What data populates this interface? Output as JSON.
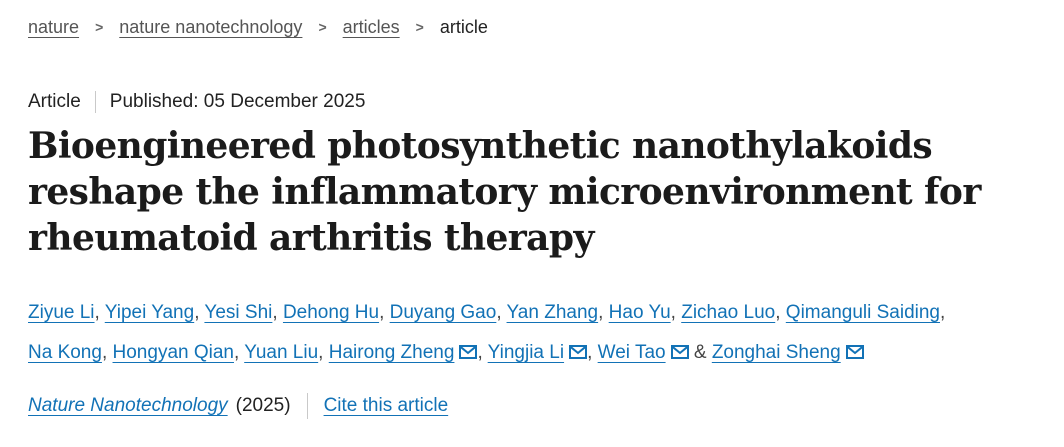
{
  "breadcrumb": {
    "separator": ">",
    "items": [
      {
        "label": "nature"
      },
      {
        "label": "nature nanotechnology"
      },
      {
        "label": "articles"
      },
      {
        "label": "article"
      }
    ]
  },
  "meta": {
    "article_type": "Article",
    "published": "Published: 05 December 2025"
  },
  "title": {
    "line1": "Bioengineered photosynthetic nanothylakoids",
    "line2": "reshape the inflammatory microenvironment for",
    "line3": "rheumatoid arthritis therapy"
  },
  "authors": {
    "line1": [
      {
        "name": "Ziyue Li",
        "email": false,
        "sep": ", "
      },
      {
        "name": "Yipei Yang",
        "email": false,
        "sep": ", "
      },
      {
        "name": "Yesi Shi",
        "email": false,
        "sep": ", "
      },
      {
        "name": "Dehong Hu",
        "email": false,
        "sep": ", "
      },
      {
        "name": "Duyang Gao",
        "email": false,
        "sep": ", "
      },
      {
        "name": "Yan Zhang",
        "email": false,
        "sep": ", "
      },
      {
        "name": "Hao Yu",
        "email": false,
        "sep": ", "
      },
      {
        "name": "Zichao Luo",
        "email": false,
        "sep": ", "
      },
      {
        "name": "Qimanguli Saiding",
        "email": false,
        "sep": ","
      }
    ],
    "line2": [
      {
        "name": "Na Kong",
        "email": false,
        "sep": ", "
      },
      {
        "name": "Hongyan Qian",
        "email": false,
        "sep": ", "
      },
      {
        "name": "Yuan Liu",
        "email": false,
        "sep": ", "
      },
      {
        "name": "Hairong Zheng",
        "email": true,
        "sep": ", "
      },
      {
        "name": "Yingjia Li",
        "email": true,
        "sep": ", "
      },
      {
        "name": "Wei Tao",
        "email": true,
        "sep": " & "
      },
      {
        "name": "Zonghai Sheng",
        "email": true,
        "sep": ""
      }
    ]
  },
  "citation": {
    "journal": "Nature Nanotechnology",
    "year": "(2025)",
    "cite_link": "Cite this article"
  },
  "colors": {
    "link_blue": "#1272b6",
    "breadcrumb_gray": "#555555",
    "text_dark": "#222222",
    "divider_gray": "#c9c9c9",
    "title_color": "#1b1b1b",
    "separator_text": "#444444"
  }
}
